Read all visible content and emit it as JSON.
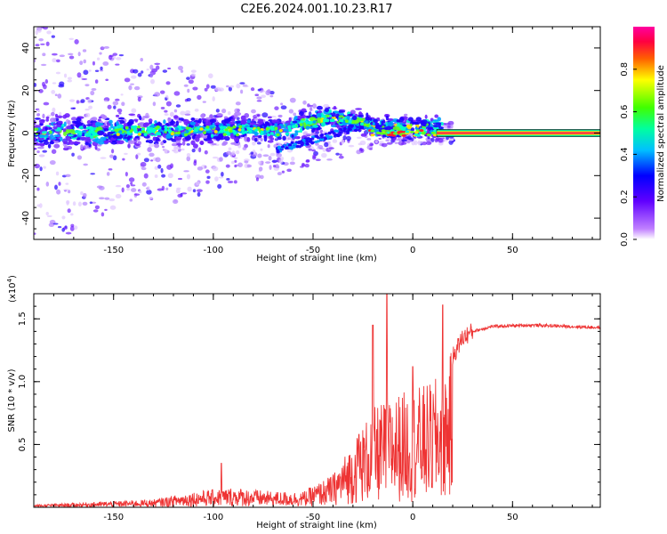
{
  "title": "C2E6.2024.001.10.23.R17",
  "chart_data": [
    {
      "type": "heatmap",
      "xlabel": "Height of straight line (km)",
      "ylabel": "Frequency (Hz)",
      "xlim": [
        -190,
        94
      ],
      "ylim": [
        -50,
        50
      ],
      "xticks": [
        -150,
        -100,
        -50,
        0,
        50
      ],
      "yticks": [
        -40,
        -20,
        0,
        20,
        40
      ],
      "colorbar": {
        "label": "Normalized spectral amplitude",
        "range": [
          0,
          1
        ],
        "ticks": [
          "0.0",
          "0.2",
          "0.4",
          "0.6",
          "0.8"
        ],
        "colors": [
          "#ffffff",
          "#8000ff",
          "#0000ff",
          "#00ffff",
          "#00ff00",
          "#ffff00",
          "#ff0000",
          "#ff00ff"
        ]
      },
      "trace": {
        "description": "narrow spectral line near 0 Hz",
        "x_start": 12,
        "x_end": 94,
        "freq": 0
      }
    },
    {
      "type": "line",
      "xlabel": "Height of straight line (km)",
      "ylabel": "SNR (10 * v/v)",
      "scale_label": "(x10",
      "scale_exp": "4",
      "scale_close": ")",
      "xlim": [
        -190,
        94
      ],
      "ylim": [
        0,
        1.7
      ],
      "xticks": [
        -150,
        -100,
        -50,
        0,
        50
      ],
      "yticks": [
        "0.5",
        "1.0",
        "1.5"
      ],
      "color": "#ee3333",
      "envelope": {
        "x": [
          -190,
          -160,
          -130,
          -110,
          -90,
          -70,
          -55,
          -40,
          -30,
          -20,
          -10,
          0,
          10,
          15,
          20,
          25,
          30,
          40,
          60,
          94
        ],
        "y": [
          0.02,
          0.04,
          0.06,
          0.12,
          0.15,
          0.12,
          0.12,
          0.25,
          0.5,
          0.75,
          0.85,
          0.9,
          0.95,
          1.05,
          1.2,
          1.35,
          1.4,
          1.44,
          1.45,
          1.43
        ]
      },
      "spikes": [
        {
          "x": -96,
          "y": 0.35
        },
        {
          "x": -27,
          "y": 0.58
        },
        {
          "x": -20,
          "y": 1.45
        },
        {
          "x": -13,
          "y": 1.7
        },
        {
          "x": 0,
          "y": 1.12
        },
        {
          "x": 15,
          "y": 1.61
        }
      ]
    }
  ]
}
